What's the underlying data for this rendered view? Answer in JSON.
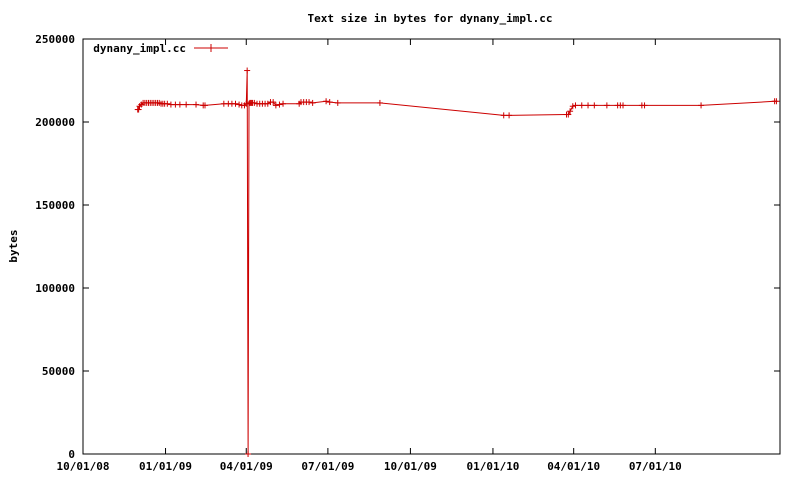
{
  "chart_data": {
    "type": "line",
    "title": "Text size in bytes for dynany_impl.cc",
    "xlabel": "",
    "ylabel": "bytes",
    "ylim": [
      0,
      250000
    ],
    "xlim": [
      "2008-10-01",
      "2010-11-17"
    ],
    "y_ticks": [
      0,
      50000,
      100000,
      150000,
      200000,
      250000
    ],
    "y_tick_labels": [
      "0",
      "50000",
      "100000",
      "150000",
      "200000",
      "250000"
    ],
    "x_ticks": [
      "2008-10-01",
      "2009-01-01",
      "2009-04-01",
      "2009-07-01",
      "2009-10-01",
      "2010-01-01",
      "2010-04-01",
      "2010-07-01"
    ],
    "x_tick_labels": [
      "10/01/08",
      "01/01/09",
      "04/01/09",
      "07/01/09",
      "10/01/09",
      "01/01/10",
      "04/01/10",
      "07/01/10"
    ],
    "grid": false,
    "legend_position": "top-left",
    "line_color": "#cc0000",
    "series": [
      {
        "name": "dynany_impl.cc",
        "x": [
          "2008-12-01",
          "2008-12-02",
          "2008-12-03",
          "2008-12-05",
          "2008-12-07",
          "2008-12-09",
          "2008-12-11",
          "2008-12-13",
          "2008-12-15",
          "2008-12-17",
          "2008-12-19",
          "2008-12-21",
          "2008-12-23",
          "2008-12-25",
          "2008-12-27",
          "2008-12-29",
          "2008-12-31",
          "2009-01-03",
          "2009-01-07",
          "2009-01-12",
          "2009-01-17",
          "2009-01-24",
          "2009-02-04",
          "2009-02-12",
          "2009-02-14",
          "2009-03-07",
          "2009-03-12",
          "2009-03-16",
          "2009-03-20",
          "2009-03-24",
          "2009-03-27",
          "2009-03-30",
          "2009-04-01",
          "2009-04-02",
          "2009-04-03",
          "2009-04-04",
          "2009-04-05",
          "2009-04-06",
          "2009-04-07",
          "2009-04-08",
          "2009-04-10",
          "2009-04-13",
          "2009-04-16",
          "2009-04-19",
          "2009-04-22",
          "2009-04-25",
          "2009-04-28",
          "2009-05-01",
          "2009-05-04",
          "2009-05-08",
          "2009-05-12",
          "2009-05-30",
          "2009-06-01",
          "2009-06-04",
          "2009-06-07",
          "2009-06-10",
          "2009-06-14",
          "2009-06-29",
          "2009-07-03",
          "2009-07-12",
          "2009-08-28",
          "2010-01-13",
          "2010-01-19",
          "2010-03-24",
          "2010-03-26",
          "2010-03-28",
          "2010-03-31",
          "2010-04-03",
          "2010-04-10",
          "2010-04-17",
          "2010-04-24",
          "2010-05-08",
          "2010-05-20",
          "2010-05-23",
          "2010-05-26",
          "2010-06-16",
          "2010-06-19",
          "2010-08-21",
          "2010-11-11",
          "2010-11-13"
        ],
        "values": [
          207500,
          207500,
          209500,
          210500,
          211500,
          211500,
          211500,
          211500,
          211500,
          211500,
          211500,
          211500,
          211500,
          211500,
          211000,
          211000,
          211000,
          211000,
          210500,
          210500,
          210500,
          210500,
          210500,
          210000,
          210000,
          211000,
          211000,
          211000,
          211000,
          210500,
          210000,
          210000,
          211000,
          231000,
          0,
          211000,
          211500,
          211500,
          211500,
          211500,
          211500,
          211000,
          211000,
          211000,
          211000,
          211000,
          212000,
          212000,
          210000,
          210500,
          211000,
          211000,
          212000,
          212000,
          212000,
          212000,
          211500,
          212500,
          212000,
          211500,
          211500,
          204000,
          204000,
          204500,
          204500,
          206500,
          209500,
          210000,
          210000,
          210000,
          210000,
          210000,
          210000,
          210000,
          210000,
          210000,
          210000,
          210000,
          212500,
          212500
        ]
      }
    ]
  }
}
